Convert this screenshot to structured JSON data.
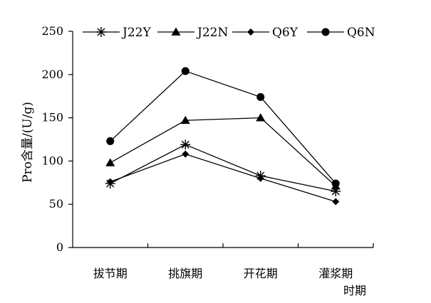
{
  "chart_data": {
    "type": "line",
    "title": "",
    "xlabel": "时期",
    "ylabel": "Pro含量/(U/g)",
    "categories": [
      "拔节期",
      "挑旗期",
      "开花期",
      "灌浆期"
    ],
    "ylim": [
      0,
      250
    ],
    "yticks": [
      "0",
      "50",
      "100",
      "150",
      "200",
      "250"
    ],
    "grid": false,
    "legend_position": "top",
    "series": [
      {
        "name": "J22Y",
        "marker": "asterisk",
        "values": [
          74,
          119,
          83,
          65
        ]
      },
      {
        "name": "J22N",
        "marker": "triangle",
        "values": [
          98,
          147,
          150,
          71
        ]
      },
      {
        "name": "Q6Y",
        "marker": "diamond",
        "values": [
          76,
          108,
          80,
          53
        ]
      },
      {
        "name": "Q6N",
        "marker": "circle",
        "values": [
          123,
          204,
          174,
          74
        ]
      }
    ],
    "line_color": "#000000"
  }
}
